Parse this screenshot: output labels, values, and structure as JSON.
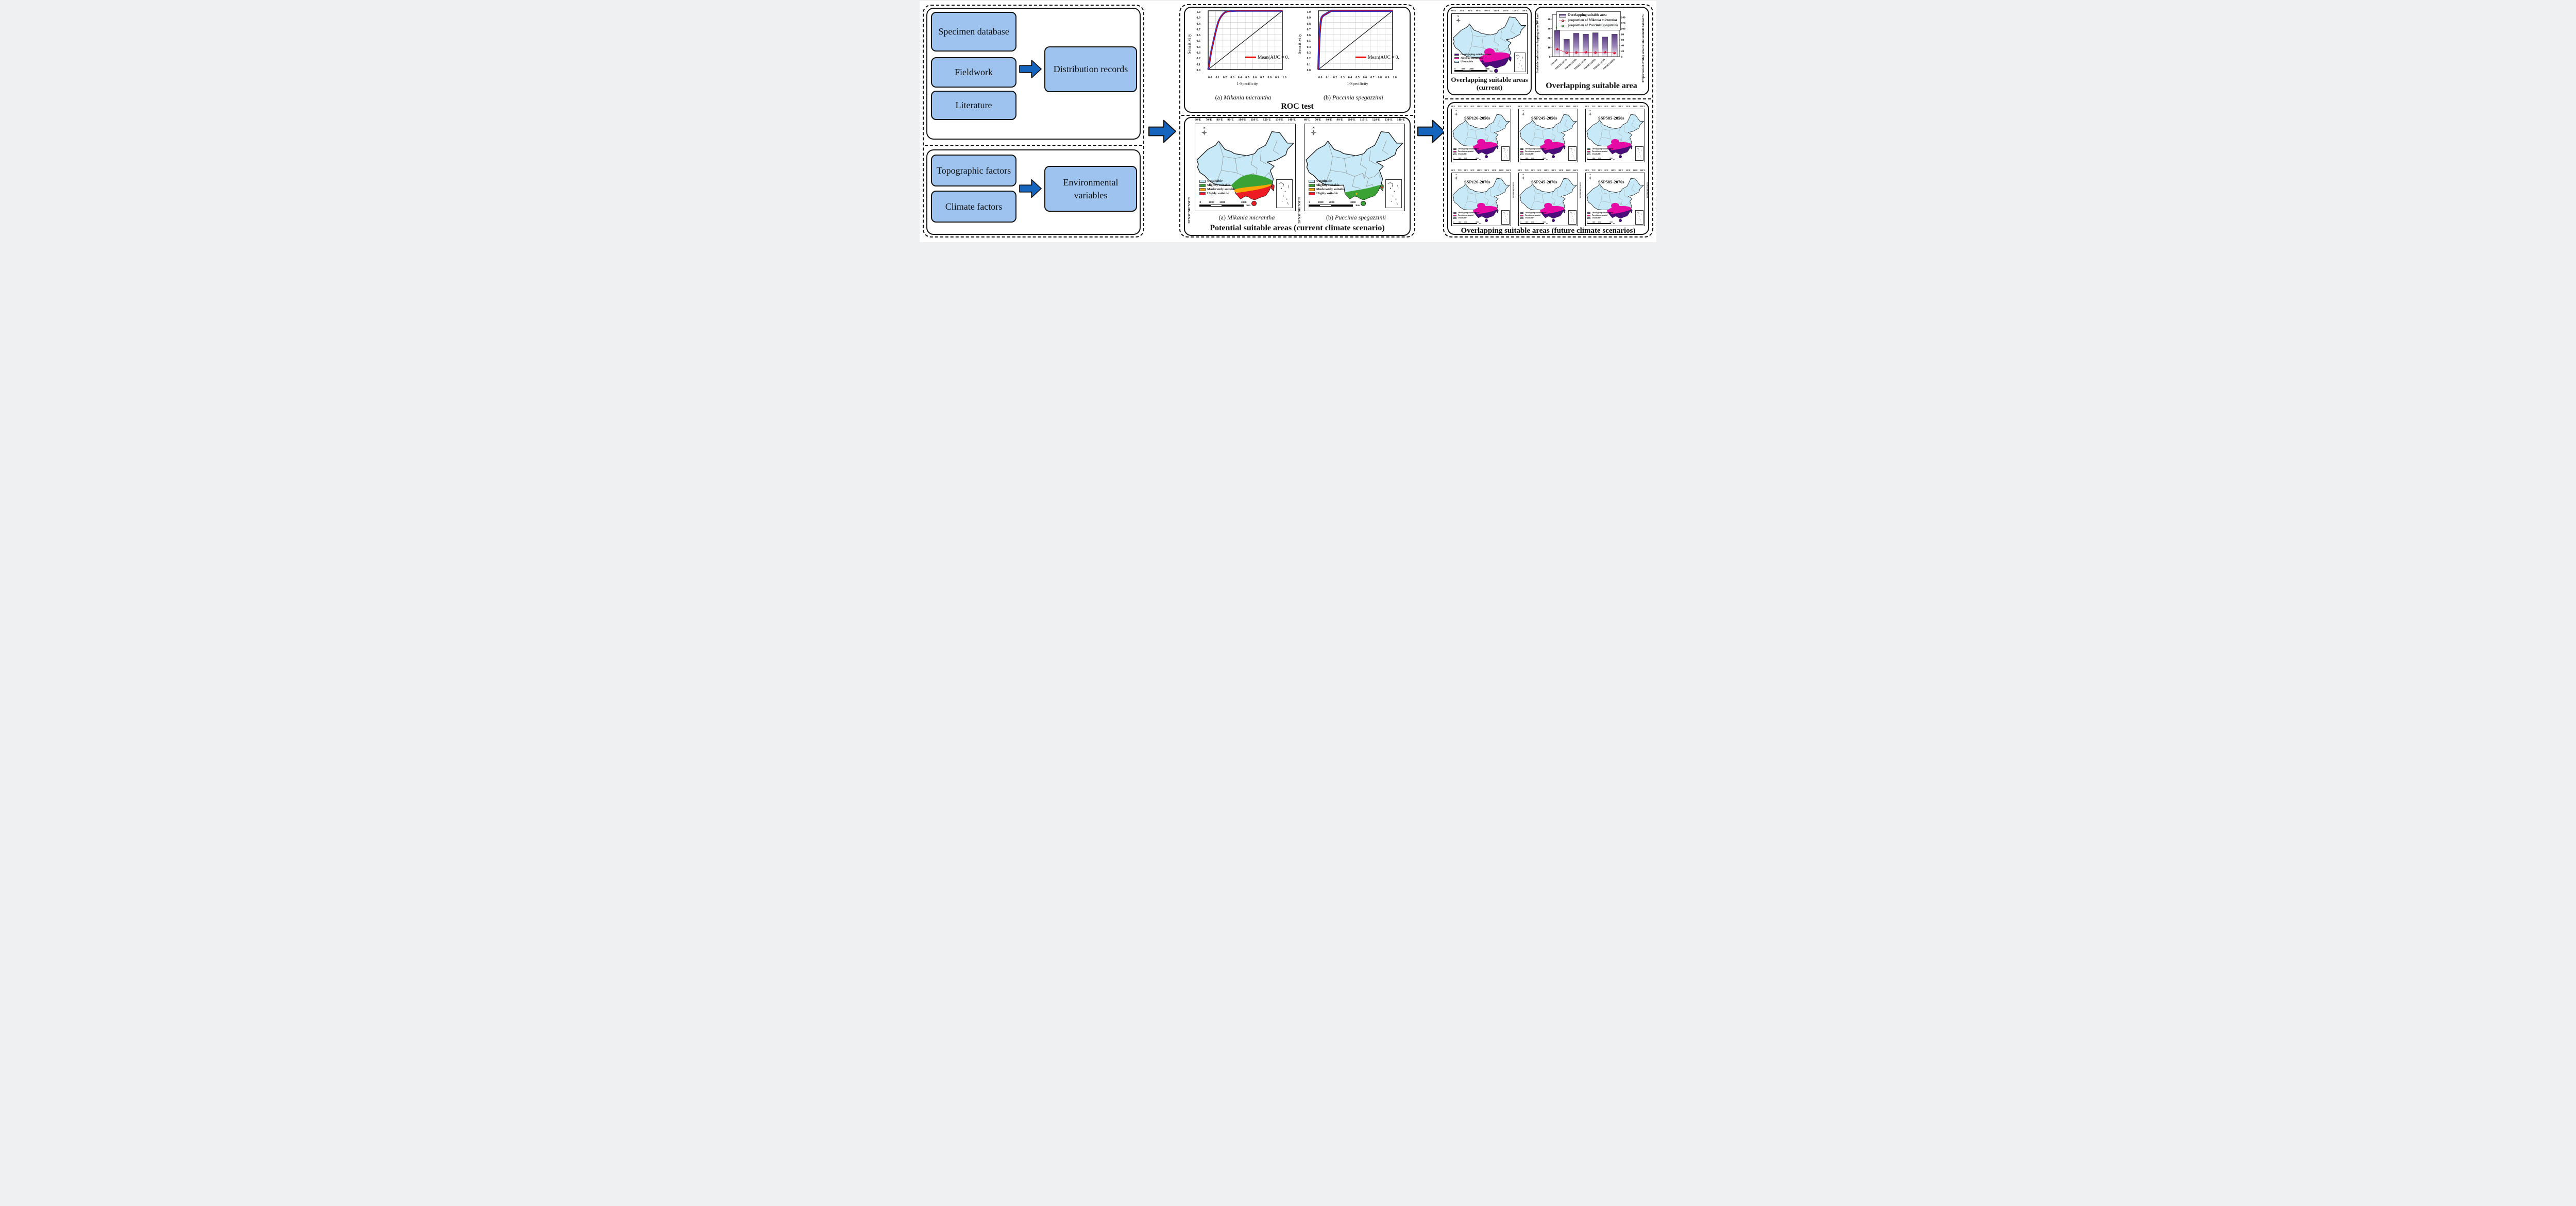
{
  "colors": {
    "box_blue": "#9DC3EE",
    "arrow_blue": "#1565BF",
    "unsuitable": "#C7E9F8",
    "slight": "#3BA336",
    "moderate": "#F9A602",
    "high": "#ED1C24",
    "puccinia": "#E60BA4",
    "overlap": "#4A0D79",
    "bar_purple": "#5C3E82",
    "line_red": "#E8112D",
    "line_green": "#2FA12B",
    "roc_blue": "#2230C8",
    "roc_red": "#E60000",
    "province": "#8A8A8A"
  },
  "compass": "N",
  "left_panel": {
    "sources": [
      "Specimen database",
      "Fieldwork",
      "Literature"
    ],
    "sources_result": "Distribution records",
    "factors": [
      "Topographic factors",
      "Climate factors"
    ],
    "factors_result": "Environmental variables"
  },
  "roc": {
    "panel_title": "ROC test",
    "xlabel": "1-Specificity",
    "ylabel": "Sensitivity",
    "xticks": [
      "0.0",
      "0.1",
      "0.2",
      "0.3",
      "0.4",
      "0.5",
      "0.6",
      "0.7",
      "0.8",
      "0.9",
      "1.0"
    ],
    "yticks": [
      "1.0",
      "0.9",
      "0.8",
      "0.7",
      "0.6",
      "0.5",
      "0.4",
      "0.3",
      "0.2",
      "0.1",
      "0.0"
    ],
    "plot_a": {
      "legend": "Mean(AUC = 0.921)",
      "caption_prefix": "(a)",
      "species": "Mikania micrantha"
    },
    "plot_b": {
      "legend": "Mean(AUC = 0.978)",
      "caption_prefix": "(b)",
      "species": "Puccinia spegazzinii"
    }
  },
  "geo": {
    "lon_ticks": [
      "60°E",
      "70°E",
      "80°E",
      "90°E",
      "100°E",
      "110°E",
      "120°E",
      "130°E",
      "140°E"
    ],
    "lat_ticks": [
      "50°N",
      "40°N",
      "30°N",
      "20°N"
    ],
    "scalebar_labels": [
      "0",
      "1000",
      "2000",
      "4000"
    ],
    "scalebar_unit": "km"
  },
  "current_suitability": {
    "panel_title": "Potential suitable areas (current climate scenario)",
    "legend": [
      "Unsuitable",
      "Slightly suitable",
      "Moderately suitable",
      "Highly suitable"
    ],
    "map_a": {
      "caption_prefix": "(a)",
      "species": "Mikania micrantha"
    },
    "map_b": {
      "caption_prefix": "(b)",
      "species": "Puccinia spegazzinii"
    }
  },
  "overlap_current": {
    "caption_line1": "Overlapping suitable areas",
    "caption_line2": "(current)",
    "legend_overlap": "Overlapping suitable areas",
    "legend_species": "Puccinia spegazzinii",
    "legend_unsuitable": "Unsuitable"
  },
  "future_panel": {
    "title": "Overlapping suitable areas  (future climate scenarios)",
    "map_titles": [
      "SSP126-2050s",
      "SSP245-2050s",
      "SSP585-2050s",
      "SSP126-2070s",
      "SSP245-2070s",
      "SSP585-2070s"
    ]
  },
  "chart_data": [
    {
      "id": "roc_a",
      "type": "line",
      "title": "ROC test (a) Mikania micrantha",
      "xlabel": "1-Specificity",
      "ylabel": "Sensitivity",
      "xlim": [
        0,
        1
      ],
      "ylim": [
        0,
        1
      ],
      "legend": [
        "Mean(AUC = 0.921)"
      ],
      "auc": 0.921,
      "grid": true,
      "mean_curve_x": [
        0,
        0.03,
        0.06,
        0.1,
        0.14,
        0.18,
        0.22,
        0.3,
        0.4,
        1.0
      ],
      "mean_curve_y": [
        0,
        0.22,
        0.45,
        0.65,
        0.82,
        0.92,
        0.975,
        0.995,
        1.0,
        1.0
      ],
      "diagonal": true
    },
    {
      "id": "roc_b",
      "type": "line",
      "title": "ROC test (b) Puccinia spegazzinii",
      "xlabel": "1-Specificity",
      "ylabel": "Sensitivity",
      "xlim": [
        0,
        1
      ],
      "ylim": [
        0,
        1
      ],
      "legend": [
        "Mean(AUC = 0.978)"
      ],
      "auc": 0.978,
      "grid": true,
      "mean_curve_x": [
        0,
        0.01,
        0.02,
        0.03,
        0.05,
        0.08,
        0.12,
        0.17,
        1.0
      ],
      "mean_curve_y": [
        0,
        0.4,
        0.68,
        0.8,
        0.89,
        0.925,
        0.96,
        1.0,
        1.0
      ],
      "diagonal": true
    },
    {
      "id": "overlap_chart",
      "type": "bar+line",
      "title": "Overlapping suitable area",
      "categories": [
        "Current",
        "SSP126-2050s",
        "SSP126-2070s",
        "SSP245-2050s",
        "SSP245-2070s",
        "SSP585-2050s",
        "SSP585-2070s"
      ],
      "bar_series": {
        "name": "Overlapping suitable area",
        "axis": "left",
        "values": [
          28,
          18.5,
          25,
          24,
          25.5,
          21,
          24
        ]
      },
      "line_series": [
        {
          "name": "proportion of Mikania micrantha",
          "axis": "right",
          "color": "red",
          "values": [
            27,
            14,
            15,
            16,
            14.5,
            16,
            13
          ]
        },
        {
          "name": "proportion of Puccinia spegazzinii",
          "axis": "right",
          "color": "green",
          "values": [
            103,
            103,
            103,
            103,
            103,
            103,
            103
          ]
        }
      ],
      "left_axis": {
        "label": "Suitable habitat overlapping area/10⁴ km²",
        "ticks": [
          0,
          10,
          20,
          30,
          40
        ],
        "max": 45
      },
      "right_axis": {
        "label": "Proportion of overlap area to total suitable habitat/%",
        "ticks": [
          0,
          20,
          40,
          60,
          80,
          100,
          120,
          140
        ],
        "max": 150
      },
      "legend_rows": [
        {
          "text": "Overlapping suitable area",
          "prefix": "",
          "species": ""
        },
        {
          "text": "",
          "prefix": "proportion of ",
          "species": "Mikania micrantha"
        },
        {
          "text": "",
          "prefix": "proportion of ",
          "species": "Puccinia spegazzinii"
        }
      ],
      "legend_position": "top-left"
    }
  ]
}
